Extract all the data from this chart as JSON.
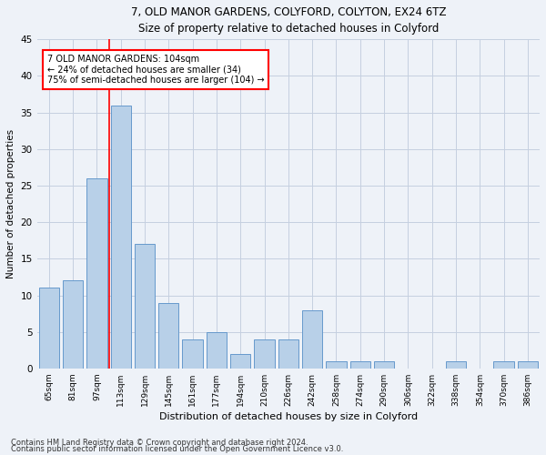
{
  "title1": "7, OLD MANOR GARDENS, COLYFORD, COLYTON, EX24 6TZ",
  "title2": "Size of property relative to detached houses in Colyford",
  "xlabel": "Distribution of detached houses by size in Colyford",
  "ylabel": "Number of detached properties",
  "footnote1": "Contains HM Land Registry data © Crown copyright and database right 2024.",
  "footnote2": "Contains public sector information licensed under the Open Government Licence v3.0.",
  "categories": [
    "65sqm",
    "81sqm",
    "97sqm",
    "113sqm",
    "129sqm",
    "145sqm",
    "161sqm",
    "177sqm",
    "194sqm",
    "210sqm",
    "226sqm",
    "242sqm",
    "258sqm",
    "274sqm",
    "290sqm",
    "306sqm",
    "322sqm",
    "338sqm",
    "354sqm",
    "370sqm",
    "386sqm"
  ],
  "values": [
    11,
    12,
    26,
    36,
    17,
    9,
    4,
    5,
    2,
    4,
    4,
    8,
    1,
    1,
    1,
    0,
    0,
    1,
    0,
    1,
    1
  ],
  "bar_color": "#b8d0e8",
  "bar_edge_color": "#6699cc",
  "ylim": [
    0,
    45
  ],
  "yticks": [
    0,
    5,
    10,
    15,
    20,
    25,
    30,
    35,
    40,
    45
  ],
  "annotation_line1": "7 OLD MANOR GARDENS: 104sqm",
  "annotation_line2": "← 24% of detached houses are smaller (34)",
  "annotation_line3": "75% of semi-detached houses are larger (104) →",
  "ref_line_x": 2.5,
  "annotation_box_color": "red",
  "background_color": "#eef2f8",
  "plot_bg_color": "#eef2f8",
  "grid_color": "#c5cfe0"
}
